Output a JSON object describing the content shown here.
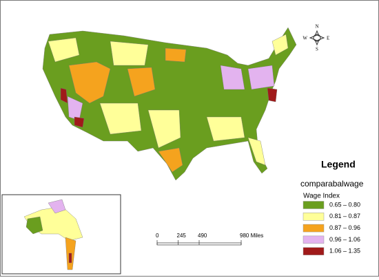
{
  "legend": {
    "title": "Legend",
    "layer": "comparabalwage",
    "field": "Wage Index",
    "items": [
      {
        "label": "0.65 – 0.80",
        "color": "#6a9e1f"
      },
      {
        "label": "0.81 – 0.87",
        "color": "#ffff99"
      },
      {
        "label": "0.87 – 0.96",
        "color": "#f5a31e"
      },
      {
        "label": "0.96 – 1.06",
        "color": "#e3b3ef"
      },
      {
        "label": "1.06 – 1.35",
        "color": "#a01a1a"
      }
    ]
  },
  "scale_bar": {
    "xlim": [
      0,
      980
    ],
    "ticks": [
      0,
      245,
      490,
      {
        "value": 980,
        "label": "980 Miles"
      }
    ]
  },
  "compass": {
    "n": "N",
    "s": "S",
    "e": "E",
    "w": "W"
  }
}
